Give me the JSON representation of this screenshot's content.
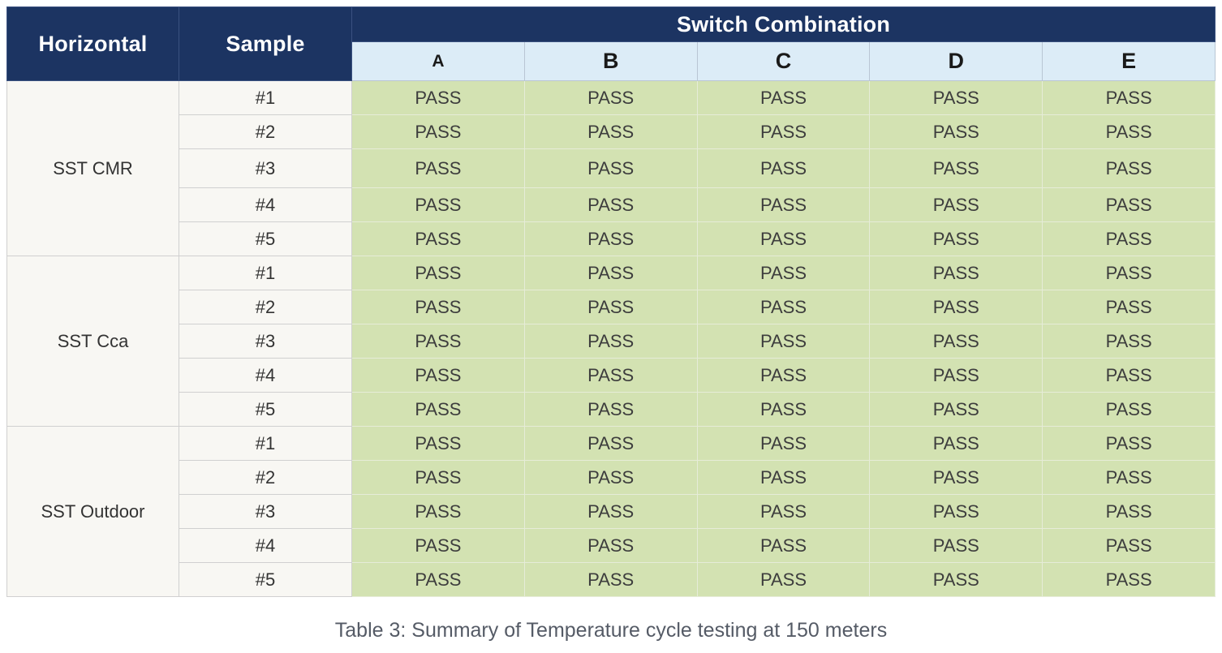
{
  "table": {
    "headers": {
      "horizontal": "Horizontal",
      "sample": "Sample",
      "switch_combination": "Switch Combination",
      "switches": [
        "A",
        "B",
        "C",
        "D",
        "E"
      ]
    },
    "groups": [
      {
        "name": "SST CMR",
        "rows": [
          {
            "sample": "#1",
            "results": [
              "PASS",
              "PASS",
              "PASS",
              "PASS",
              "PASS"
            ]
          },
          {
            "sample": "#2",
            "results": [
              "PASS",
              "PASS",
              "PASS",
              "PASS",
              "PASS"
            ]
          },
          {
            "sample": "#3",
            "results": [
              "PASS",
              "PASS",
              "PASS",
              "PASS",
              "PASS"
            ]
          },
          {
            "sample": "#4",
            "results": [
              "PASS",
              "PASS",
              "PASS",
              "PASS",
              "PASS"
            ]
          },
          {
            "sample": "#5",
            "results": [
              "PASS",
              "PASS",
              "PASS",
              "PASS",
              "PASS"
            ]
          }
        ]
      },
      {
        "name": "SST Cca",
        "rows": [
          {
            "sample": "#1",
            "results": [
              "PASS",
              "PASS",
              "PASS",
              "PASS",
              "PASS"
            ]
          },
          {
            "sample": "#2",
            "results": [
              "PASS",
              "PASS",
              "PASS",
              "PASS",
              "PASS"
            ]
          },
          {
            "sample": "#3",
            "results": [
              "PASS",
              "PASS",
              "PASS",
              "PASS",
              "PASS"
            ]
          },
          {
            "sample": "#4",
            "results": [
              "PASS",
              "PASS",
              "PASS",
              "PASS",
              "PASS"
            ]
          },
          {
            "sample": "#5",
            "results": [
              "PASS",
              "PASS",
              "PASS",
              "PASS",
              "PASS"
            ]
          }
        ]
      },
      {
        "name": "SST Outdoor",
        "rows": [
          {
            "sample": "#1",
            "results": [
              "PASS",
              "PASS",
              "PASS",
              "PASS",
              "PASS"
            ]
          },
          {
            "sample": "#2",
            "results": [
              "PASS",
              "PASS",
              "PASS",
              "PASS",
              "PASS"
            ]
          },
          {
            "sample": "#3",
            "results": [
              "PASS",
              "PASS",
              "PASS",
              "PASS",
              "PASS"
            ]
          },
          {
            "sample": "#4",
            "results": [
              "PASS",
              "PASS",
              "PASS",
              "PASS",
              "PASS"
            ]
          },
          {
            "sample": "#5",
            "results": [
              "PASS",
              "PASS",
              "PASS",
              "PASS",
              "PASS"
            ]
          }
        ]
      }
    ]
  },
  "caption": "Table 3: Summary of Temperature cycle testing at 150 meters",
  "colors": {
    "header_navy": "#1c3462",
    "subheader_light_blue": "#dcecf7",
    "pass_green": "#d3e2b2",
    "label_cell_bg": "#f8f7f3"
  }
}
